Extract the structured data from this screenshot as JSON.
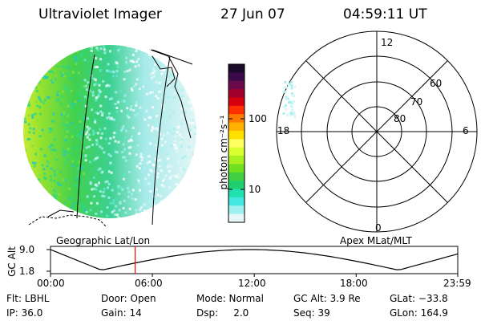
{
  "header": {
    "instrument": "Ultraviolet Imager",
    "date": "27 Jun 07",
    "time": "04:59:11 UT"
  },
  "colorbar": {
    "unit_label": "photon cm⁻²s⁻¹",
    "ticks": [
      "100",
      "10"
    ],
    "colors": [
      "#1a0a2a",
      "#3a0a4a",
      "#6a0a4a",
      "#a0002a",
      "#d40010",
      "#ff3000",
      "#ff7a00",
      "#ffb000",
      "#ffe000",
      "#ffff60",
      "#d8ff30",
      "#a8f020",
      "#70e020",
      "#40d040",
      "#20d070",
      "#20e0b0",
      "#40e8e0",
      "#a0f0f0",
      "#e8f8f8"
    ]
  },
  "left_map": {
    "projection_label": "Geographic Lat/Lon"
  },
  "right_map": {
    "projection_label": "Apex MLat/MLT",
    "mlt_labels": [
      "12",
      "18",
      "6",
      "0"
    ],
    "lat_labels": [
      "60",
      "70",
      "80"
    ]
  },
  "timeline": {
    "ylabel": "GC Alt",
    "y_ticks": [
      "9.0",
      "1.8"
    ],
    "x_ticks": [
      "00:00",
      "06:00",
      "12:00",
      "18:00",
      "23:59"
    ],
    "marker_time": "04:59",
    "marker_color": "#ff0000"
  },
  "info": {
    "flt": "Flt: LBHL",
    "ip": "IP: 36.0",
    "door": "Door: Open",
    "gain": "Gain: 14",
    "mode": "Mode: Normal",
    "dsp": "Dsp:     2.0",
    "gc_alt": "GC Alt: 3.9 Re",
    "seq": "Seq: 39",
    "glat": "GLat: −33.8",
    "glon": "GLon: 164.9"
  }
}
